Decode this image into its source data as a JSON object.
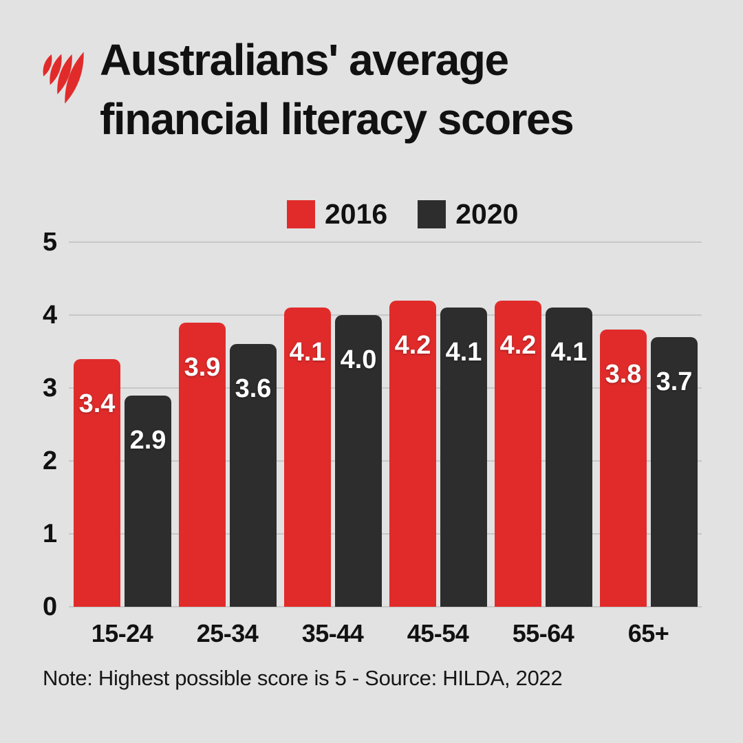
{
  "header": {
    "title_lines": [
      "Australians' average",
      "financial literacy scores"
    ]
  },
  "chart_data": {
    "type": "bar",
    "title": "Australians' average financial literacy scores",
    "categories": [
      "15-24",
      "25-34",
      "35-44",
      "45-54",
      "55-64",
      "65+"
    ],
    "series": [
      {
        "name": "2016",
        "color": "#e12b2b",
        "values": [
          3.4,
          3.9,
          4.1,
          4.2,
          4.2,
          3.8
        ]
      },
      {
        "name": "2020",
        "color": "#2d2d2d",
        "values": [
          2.9,
          3.6,
          4.0,
          4.1,
          4.1,
          3.7
        ]
      }
    ],
    "ylim": [
      0,
      5
    ],
    "yticks": [
      0,
      1,
      2,
      3,
      4,
      5
    ],
    "grid": true,
    "legend_position": "top-center",
    "value_labels": true,
    "value_label_decimals": 1
  },
  "footer": {
    "note": "Note: Highest possible score is 5 - Source: HILDA, 2022"
  },
  "colors": {
    "background": "#e2e2e2",
    "grid": "#c7c7c7",
    "text": "#111111",
    "bar_label": "#ffffff",
    "brand_red": "#e12b2b",
    "brand_dark": "#2d2d2d"
  },
  "icons": {
    "logo": "sbs-flames-logo"
  }
}
